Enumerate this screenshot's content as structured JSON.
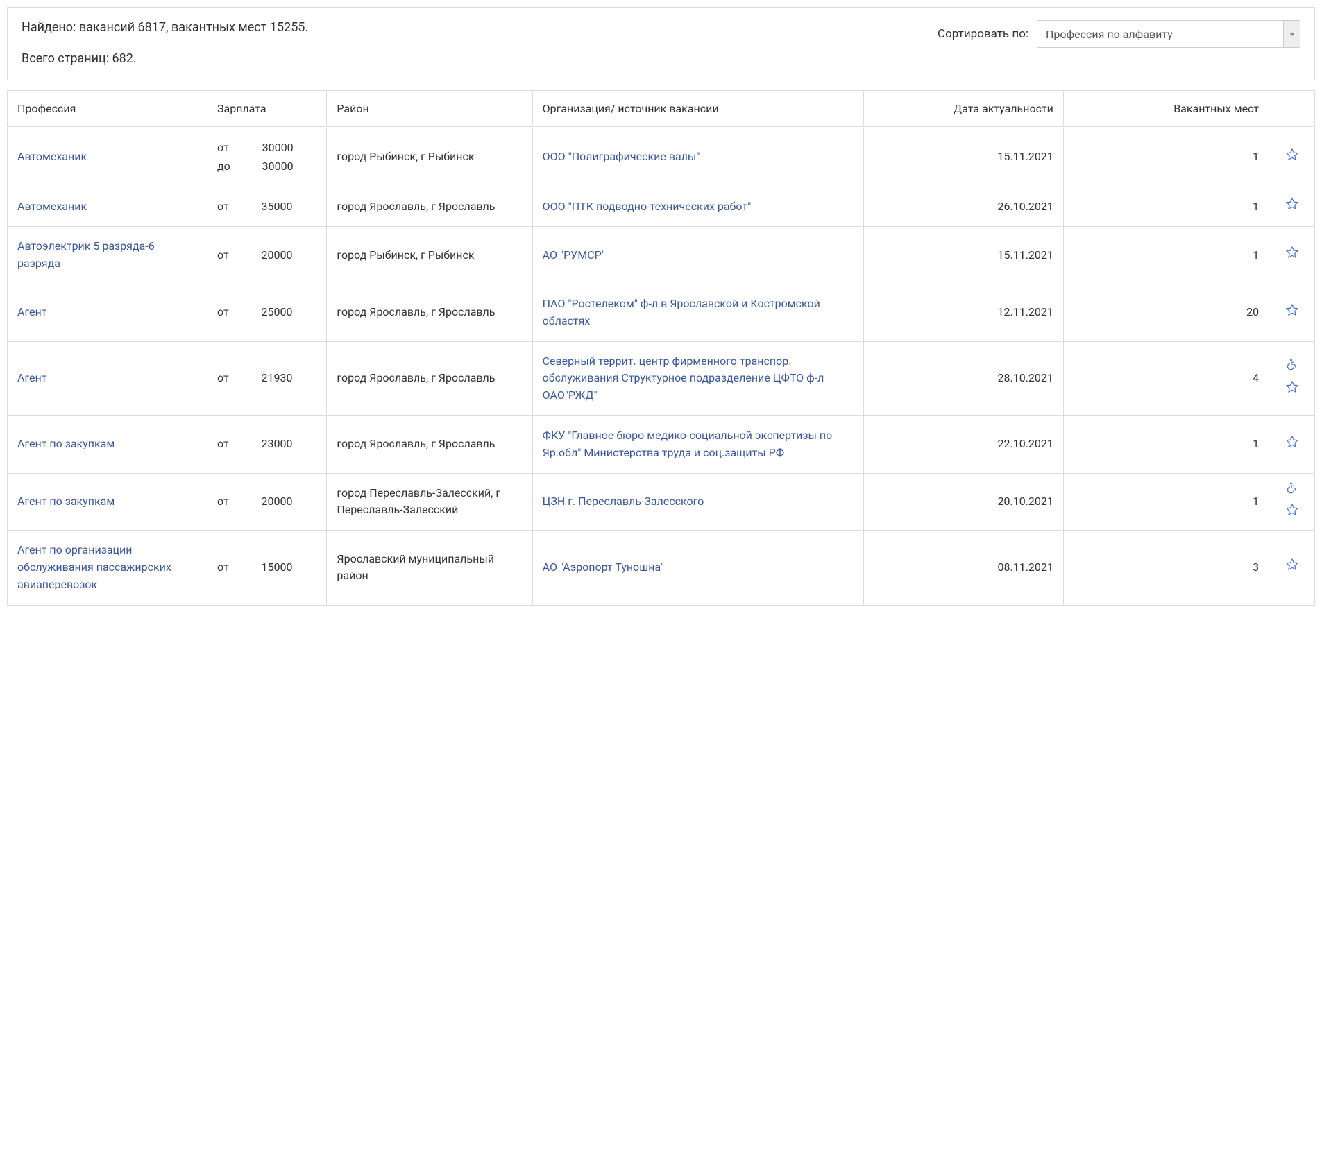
{
  "header": {
    "found_text": "Найдено: вакансий 6817, вакантных мест 15255.",
    "pages_text": "Всего страниц: 682.",
    "sort_label": "Сортировать по:",
    "sort_value": "Профессия по алфавиту"
  },
  "table": {
    "columns": {
      "profession": "Профессия",
      "salary": "Зарплата",
      "region": "Район",
      "org": "Организация/ источник вакансии",
      "date": "Дата актуальности",
      "vacancies": "Вакантных мест",
      "icons": ""
    },
    "labels": {
      "from": "от",
      "to": "до"
    },
    "rows": [
      {
        "profession": "Автомеханик",
        "salary_from": "30000",
        "salary_to": "30000",
        "region": "город Рыбинск, г Рыбинск",
        "org": "ООО \"Полиграфические валы\"",
        "date": "15.11.2021",
        "vacancies": "1",
        "disabled": false
      },
      {
        "profession": "Автомеханик",
        "salary_from": "35000",
        "salary_to": null,
        "region": "город Ярославль, г Ярославль",
        "org": "ООО \"ПТК подводно-технических работ\"",
        "date": "26.10.2021",
        "vacancies": "1",
        "disabled": false
      },
      {
        "profession": "Автоэлектрик 5 разряда-6 разряда",
        "salary_from": "20000",
        "salary_to": null,
        "region": "город Рыбинск, г Рыбинск",
        "org": "АО \"РУМСР\"",
        "date": "15.11.2021",
        "vacancies": "1",
        "disabled": false
      },
      {
        "profession": "Агент",
        "salary_from": "25000",
        "salary_to": null,
        "region": "город Ярославль, г Ярославль",
        "org": "ПАО \"Ростелеком\" ф-л в Ярославской и Костромской областях",
        "date": "12.11.2021",
        "vacancies": "20",
        "disabled": false
      },
      {
        "profession": "Агент",
        "salary_from": "21930",
        "salary_to": null,
        "region": "город Ярославль, г Ярославль",
        "org": "Северный террит. центр фирменного транспор. обслуживания Структурное подразделение ЦФТО ф-л ОАО\"РЖД\"",
        "date": "28.10.2021",
        "vacancies": "4",
        "disabled": true
      },
      {
        "profession": "Агент по закупкам",
        "salary_from": "23000",
        "salary_to": null,
        "region": "город Ярославль, г Ярославль",
        "org": "ФКУ \"Главное бюро медико-социальной экспертизы по Яр.обл\" Министерства труда и соц.защиты РФ",
        "date": "22.10.2021",
        "vacancies": "1",
        "disabled": false
      },
      {
        "profession": "Агент по закупкам",
        "salary_from": "20000",
        "salary_to": null,
        "region": "город Переславль-Залесский, г Переславль-Залесский",
        "org": "ЦЗН г. Переславль-Залесского",
        "date": "20.10.2021",
        "vacancies": "1",
        "disabled": true
      },
      {
        "profession": "Агент по организации обслуживания пассажирских авиаперевозок",
        "salary_from": "15000",
        "salary_to": null,
        "region": "Ярославский муниципальный район",
        "org": "АО \"Аэропорт Туношна\"",
        "date": "08.11.2021",
        "vacancies": "3",
        "disabled": false
      }
    ]
  },
  "colors": {
    "link": "#3b5998",
    "border": "#dddddd",
    "text": "#333333",
    "icon": "#4a74c9"
  }
}
